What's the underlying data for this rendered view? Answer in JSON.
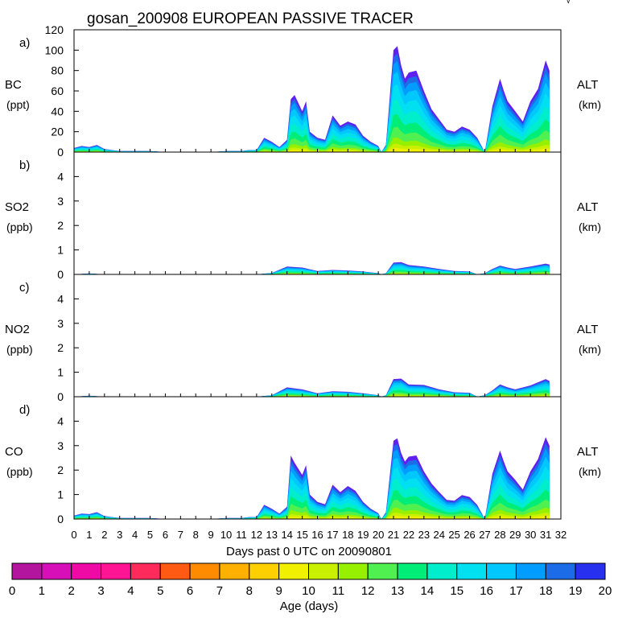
{
  "title": "gosan_200908 EUROPEAN PASSIVE TRACER",
  "corner_mark": "√",
  "colors": {
    "frame": "#000000",
    "age_palette": [
      "#8b0f8b",
      "#b3159f",
      "#d70fb8",
      "#ef0aa6",
      "#ff1493",
      "#ff2a5c",
      "#ff5a14",
      "#ff8c00",
      "#ffb000",
      "#ffd000",
      "#f0f000",
      "#c8f000",
      "#96f000",
      "#50f050",
      "#00ee77",
      "#00eecc",
      "#00e0f0",
      "#00c8ff",
      "#009cff",
      "#1c6ce8",
      "#2830f0",
      "#6020f0"
    ]
  },
  "chart_data": {
    "type": "area",
    "xlabel": "Days past 0 UTC on 20090801",
    "x_ticks": [
      "0",
      "1",
      "2",
      "3",
      "4",
      "5",
      "6",
      "7",
      "8",
      "9",
      "10",
      "11",
      "12",
      "13",
      "14",
      "15",
      "16",
      "17",
      "18",
      "19",
      "20",
      "21",
      "22",
      "23",
      "24",
      "25",
      "26",
      "27",
      "28",
      "29",
      "30",
      "31",
      "32"
    ],
    "xlim": [
      0,
      32
    ],
    "age_colorbar": {
      "label": "Age (days)",
      "ticks": [
        "0",
        "1",
        "2",
        "3",
        "4",
        "5",
        "6",
        "7",
        "8",
        "9",
        "10",
        "11",
        "12",
        "13",
        "14",
        "15",
        "16",
        "17",
        "18",
        "19",
        "20"
      ]
    },
    "panels": [
      {
        "letter": "a)",
        "species": "BC",
        "unit": "(ppt)",
        "right_label": "ALT",
        "right_unit": "(km)",
        "ylim": [
          0,
          120
        ],
        "y_ticks": [
          "0",
          "20",
          "40",
          "60",
          "80",
          "100",
          "120"
        ],
        "series_x": [
          0,
          0.5,
          1,
          1.5,
          2,
          2.5,
          3,
          4,
          5,
          6,
          7,
          8,
          9,
          10,
          11,
          11.5,
          12,
          12.5,
          13,
          13.5,
          14,
          14.25,
          14.5,
          15,
          15.25,
          15.5,
          16,
          16.5,
          17,
          17.5,
          18,
          18.5,
          19,
          19.5,
          20,
          20.2,
          20.5,
          21,
          21.25,
          21.5,
          21.75,
          22,
          22.5,
          23,
          23.5,
          24,
          24.5,
          25,
          25.5,
          26,
          26.5,
          27,
          27.5,
          28,
          28.25,
          28.5,
          29,
          29.5,
          30,
          30.5,
          31,
          31.25
        ],
        "series_y": [
          4,
          6,
          5,
          7,
          3,
          2,
          1,
          1,
          1,
          0,
          0,
          0,
          0,
          1,
          1,
          2,
          2,
          14,
          10,
          5,
          12,
          52,
          56,
          40,
          50,
          20,
          14,
          12,
          36,
          26,
          30,
          27,
          16,
          10,
          6,
          0,
          7,
          100,
          104,
          85,
          72,
          78,
          80,
          60,
          42,
          32,
          22,
          20,
          25,
          22,
          14,
          0,
          45,
          72,
          60,
          50,
          40,
          30,
          50,
          62,
          90,
          80
        ]
      },
      {
        "letter": "b)",
        "species": "SO2",
        "unit": "(ppb)",
        "right_label": "ALT",
        "right_unit": "(km)",
        "ylim": [
          0,
          5
        ],
        "y_ticks": [
          "0",
          "1",
          "2",
          "3",
          "4"
        ],
        "series_x": [
          0,
          1,
          2,
          12,
          13,
          14,
          15,
          16,
          17,
          18,
          19,
          20,
          20.2,
          20.5,
          21,
          21.5,
          22,
          23,
          24,
          25,
          26,
          26.5,
          27,
          27.5,
          28,
          28.5,
          29,
          30,
          31,
          31.25
        ],
        "series_y": [
          0,
          0.04,
          0,
          0,
          0.06,
          0.32,
          0.28,
          0.14,
          0.18,
          0.16,
          0.12,
          0.05,
          0,
          0.05,
          0.48,
          0.5,
          0.38,
          0.32,
          0.22,
          0.14,
          0.12,
          0,
          0.05,
          0.22,
          0.36,
          0.28,
          0.22,
          0.32,
          0.44,
          0.4
        ]
      },
      {
        "letter": "c)",
        "species": "NO2",
        "unit": "(ppb)",
        "right_label": "ALT",
        "right_unit": "(km)",
        "ylim": [
          0,
          5
        ],
        "y_ticks": [
          "0",
          "1",
          "2",
          "3",
          "4"
        ],
        "series_x": [
          0,
          1,
          2,
          12,
          13,
          14,
          15,
          16,
          17,
          18,
          19,
          20,
          20.2,
          20.5,
          21,
          21.5,
          22,
          23,
          24,
          25,
          26,
          26.5,
          27,
          27.5,
          28,
          28.5,
          29,
          30,
          31,
          31.25
        ],
        "series_y": [
          0,
          0.04,
          0,
          0,
          0.06,
          0.38,
          0.3,
          0.14,
          0.22,
          0.2,
          0.14,
          0.06,
          0,
          0.06,
          0.72,
          0.74,
          0.5,
          0.48,
          0.3,
          0.18,
          0.16,
          0,
          0.06,
          0.26,
          0.5,
          0.38,
          0.3,
          0.46,
          0.72,
          0.64
        ]
      },
      {
        "letter": "d)",
        "species": "CO",
        "unit": "(ppb)",
        "right_label": "ALT",
        "right_unit": "(km)",
        "ylim": [
          0,
          5
        ],
        "y_ticks": [
          "0",
          "1",
          "2",
          "3",
          "4"
        ],
        "series_x": [
          0,
          0.5,
          1,
          1.5,
          2,
          2.5,
          3,
          4,
          5,
          6,
          7,
          8,
          9,
          10,
          11,
          11.5,
          12,
          12.5,
          13,
          13.5,
          14,
          14.25,
          14.5,
          15,
          15.25,
          15.5,
          16,
          16.5,
          17,
          17.5,
          18,
          18.5,
          19,
          19.5,
          20,
          20.2,
          20.5,
          21,
          21.25,
          21.5,
          21.75,
          22,
          22.5,
          23,
          23.5,
          24,
          24.5,
          25,
          25.5,
          26,
          26.5,
          27,
          27.5,
          28,
          28.25,
          28.5,
          29,
          29.5,
          30,
          30.5,
          31,
          31.25
        ],
        "series_y": [
          0.14,
          0.22,
          0.2,
          0.28,
          0.12,
          0.08,
          0.04,
          0.04,
          0.04,
          0,
          0,
          0,
          0,
          0.04,
          0.04,
          0.08,
          0.08,
          0.58,
          0.42,
          0.22,
          0.5,
          2.6,
          2.3,
          1.8,
          2.2,
          1.0,
          0.7,
          0.6,
          1.4,
          1.1,
          1.35,
          1.15,
          0.7,
          0.42,
          0.24,
          0,
          0.28,
          3.2,
          3.3,
          2.7,
          2.35,
          2.55,
          2.6,
          1.95,
          1.45,
          1.1,
          0.78,
          0.75,
          0.98,
          0.9,
          0.58,
          0,
          1.85,
          2.8,
          2.35,
          1.95,
          1.6,
          1.2,
          1.95,
          2.45,
          3.35,
          3.0
        ]
      }
    ]
  }
}
